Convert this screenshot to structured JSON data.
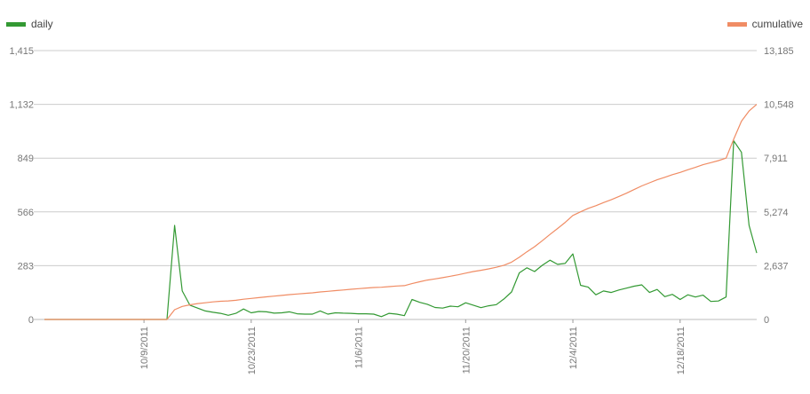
{
  "chart_data": {
    "type": "line",
    "legend": {
      "position": "top",
      "items": [
        {
          "label": "daily",
          "color": "#339933",
          "axis": "left"
        },
        {
          "label": "cumulative",
          "color": "#f08c64",
          "axis": "right"
        }
      ]
    },
    "y_left": {
      "ticks": [
        "0",
        "283",
        "566",
        "849",
        "1,132",
        "1,415"
      ],
      "range": [
        0,
        1415
      ]
    },
    "y_right": {
      "ticks": [
        "0",
        "2,637",
        "5,274",
        "7,911",
        "10,548",
        "13,185"
      ],
      "range": [
        0,
        13185
      ]
    },
    "x_axis": {
      "type": "date",
      "range": [
        "2011-09-26",
        "2011-12-28"
      ],
      "ticks": [
        {
          "date": "2011-10-09",
          "label": "10/9/2011"
        },
        {
          "date": "2011-10-23",
          "label": "10/23/2011"
        },
        {
          "date": "2011-11-06",
          "label": "11/6/2011"
        },
        {
          "date": "2011-11-20",
          "label": "11/20/2011"
        },
        {
          "date": "2011-12-04",
          "label": "12/4/2011"
        },
        {
          "date": "2011-12-18",
          "label": "12/18/2011"
        }
      ]
    },
    "grid": true,
    "series": [
      {
        "name": "daily",
        "color": "#339933",
        "axis": "left",
        "points": [
          [
            "2011-09-26",
            0
          ],
          [
            "2011-09-27",
            0
          ],
          [
            "2011-09-28",
            0
          ],
          [
            "2011-09-29",
            0
          ],
          [
            "2011-09-30",
            0
          ],
          [
            "2011-10-01",
            0
          ],
          [
            "2011-10-02",
            0
          ],
          [
            "2011-10-03",
            0
          ],
          [
            "2011-10-04",
            0
          ],
          [
            "2011-10-05",
            0
          ],
          [
            "2011-10-06",
            0
          ],
          [
            "2011-10-07",
            0
          ],
          [
            "2011-10-08",
            0
          ],
          [
            "2011-10-09",
            0
          ],
          [
            "2011-10-10",
            0
          ],
          [
            "2011-10-11",
            0
          ],
          [
            "2011-10-12",
            0
          ],
          [
            "2011-10-13",
            495
          ],
          [
            "2011-10-14",
            150
          ],
          [
            "2011-10-15",
            75
          ],
          [
            "2011-10-16",
            60
          ],
          [
            "2011-10-17",
            45
          ],
          [
            "2011-10-18",
            38
          ],
          [
            "2011-10-19",
            32
          ],
          [
            "2011-10-20",
            22
          ],
          [
            "2011-10-21",
            32
          ],
          [
            "2011-10-22",
            55
          ],
          [
            "2011-10-23",
            35
          ],
          [
            "2011-10-24",
            42
          ],
          [
            "2011-10-25",
            40
          ],
          [
            "2011-10-26",
            33
          ],
          [
            "2011-10-27",
            35
          ],
          [
            "2011-10-28",
            40
          ],
          [
            "2011-10-29",
            30
          ],
          [
            "2011-10-30",
            28
          ],
          [
            "2011-10-31",
            28
          ],
          [
            "2011-11-01",
            45
          ],
          [
            "2011-11-02",
            28
          ],
          [
            "2011-11-03",
            35
          ],
          [
            "2011-11-04",
            33
          ],
          [
            "2011-11-05",
            32
          ],
          [
            "2011-11-06",
            30
          ],
          [
            "2011-11-07",
            30
          ],
          [
            "2011-11-08",
            28
          ],
          [
            "2011-11-09",
            15
          ],
          [
            "2011-11-10",
            32
          ],
          [
            "2011-11-11",
            28
          ],
          [
            "2011-11-12",
            20
          ],
          [
            "2011-11-13",
            105
          ],
          [
            "2011-11-14",
            90
          ],
          [
            "2011-11-15",
            80
          ],
          [
            "2011-11-16",
            63
          ],
          [
            "2011-11-17",
            60
          ],
          [
            "2011-11-18",
            70
          ],
          [
            "2011-11-19",
            67
          ],
          [
            "2011-11-20",
            88
          ],
          [
            "2011-11-21",
            75
          ],
          [
            "2011-11-22",
            62
          ],
          [
            "2011-11-23",
            72
          ],
          [
            "2011-11-24",
            78
          ],
          [
            "2011-11-25",
            108
          ],
          [
            "2011-11-26",
            145
          ],
          [
            "2011-11-27",
            245
          ],
          [
            "2011-11-28",
            272
          ],
          [
            "2011-11-29",
            252
          ],
          [
            "2011-11-30",
            285
          ],
          [
            "2011-12-01",
            312
          ],
          [
            "2011-12-02",
            290
          ],
          [
            "2011-12-03",
            295
          ],
          [
            "2011-12-04",
            345
          ],
          [
            "2011-12-05",
            180
          ],
          [
            "2011-12-06",
            170
          ],
          [
            "2011-12-07",
            130
          ],
          [
            "2011-12-08",
            150
          ],
          [
            "2011-12-09",
            142
          ],
          [
            "2011-12-10",
            155
          ],
          [
            "2011-12-11",
            165
          ],
          [
            "2011-12-12",
            175
          ],
          [
            "2011-12-13",
            182
          ],
          [
            "2011-12-14",
            142
          ],
          [
            "2011-12-15",
            158
          ],
          [
            "2011-12-16",
            120
          ],
          [
            "2011-12-17",
            132
          ],
          [
            "2011-12-18",
            105
          ],
          [
            "2011-12-19",
            130
          ],
          [
            "2011-12-20",
            118
          ],
          [
            "2011-12-21",
            128
          ],
          [
            "2011-12-22",
            95
          ],
          [
            "2011-12-23",
            97
          ],
          [
            "2011-12-24",
            118
          ],
          [
            "2011-12-25",
            940
          ],
          [
            "2011-12-26",
            880
          ],
          [
            "2011-12-27",
            495
          ],
          [
            "2011-12-28",
            350
          ]
        ]
      },
      {
        "name": "cumulative",
        "color": "#f08c64",
        "axis": "right",
        "points": [
          [
            "2011-09-26",
            0
          ],
          [
            "2011-09-27",
            0
          ],
          [
            "2011-09-28",
            0
          ],
          [
            "2011-09-29",
            0
          ],
          [
            "2011-09-30",
            0
          ],
          [
            "2011-10-01",
            0
          ],
          [
            "2011-10-02",
            0
          ],
          [
            "2011-10-03",
            0
          ],
          [
            "2011-10-04",
            0
          ],
          [
            "2011-10-05",
            0
          ],
          [
            "2011-10-06",
            0
          ],
          [
            "2011-10-07",
            0
          ],
          [
            "2011-10-08",
            0
          ],
          [
            "2011-10-09",
            0
          ],
          [
            "2011-10-10",
            0
          ],
          [
            "2011-10-11",
            0
          ],
          [
            "2011-10-12",
            0
          ],
          [
            "2011-10-13",
            480
          ],
          [
            "2011-10-14",
            640
          ],
          [
            "2011-10-15",
            720
          ],
          [
            "2011-10-16",
            780
          ],
          [
            "2011-10-17",
            820
          ],
          [
            "2011-10-18",
            860
          ],
          [
            "2011-10-19",
            890
          ],
          [
            "2011-10-20",
            910
          ],
          [
            "2011-10-21",
            940
          ],
          [
            "2011-10-22",
            990
          ],
          [
            "2011-10-23",
            1030
          ],
          [
            "2011-10-24",
            1070
          ],
          [
            "2011-10-25",
            1110
          ],
          [
            "2011-10-26",
            1145
          ],
          [
            "2011-10-27",
            1180
          ],
          [
            "2011-10-28",
            1220
          ],
          [
            "2011-10-29",
            1250
          ],
          [
            "2011-10-30",
            1280
          ],
          [
            "2011-10-31",
            1305
          ],
          [
            "2011-11-01",
            1350
          ],
          [
            "2011-11-02",
            1380
          ],
          [
            "2011-11-03",
            1415
          ],
          [
            "2011-11-04",
            1445
          ],
          [
            "2011-11-05",
            1480
          ],
          [
            "2011-11-06",
            1510
          ],
          [
            "2011-11-07",
            1540
          ],
          [
            "2011-11-08",
            1565
          ],
          [
            "2011-11-09",
            1580
          ],
          [
            "2011-11-10",
            1610
          ],
          [
            "2011-11-11",
            1640
          ],
          [
            "2011-11-12",
            1660
          ],
          [
            "2011-11-13",
            1760
          ],
          [
            "2011-11-14",
            1850
          ],
          [
            "2011-11-15",
            1930
          ],
          [
            "2011-11-16",
            1990
          ],
          [
            "2011-11-17",
            2050
          ],
          [
            "2011-11-18",
            2120
          ],
          [
            "2011-11-19",
            2190
          ],
          [
            "2011-11-20",
            2270
          ],
          [
            "2011-11-21",
            2350
          ],
          [
            "2011-11-22",
            2410
          ],
          [
            "2011-11-23",
            2480
          ],
          [
            "2011-11-24",
            2560
          ],
          [
            "2011-11-25",
            2660
          ],
          [
            "2011-11-26",
            2810
          ],
          [
            "2011-11-27",
            3050
          ],
          [
            "2011-11-28",
            3320
          ],
          [
            "2011-11-29",
            3570
          ],
          [
            "2011-11-30",
            3860
          ],
          [
            "2011-12-01",
            4170
          ],
          [
            "2011-12-02",
            4460
          ],
          [
            "2011-12-03",
            4760
          ],
          [
            "2011-12-04",
            5100
          ],
          [
            "2011-12-05",
            5280
          ],
          [
            "2011-12-06",
            5450
          ],
          [
            "2011-12-07",
            5580
          ],
          [
            "2011-12-08",
            5730
          ],
          [
            "2011-12-09",
            5870
          ],
          [
            "2011-12-10",
            6030
          ],
          [
            "2011-12-11",
            6190
          ],
          [
            "2011-12-12",
            6370
          ],
          [
            "2011-12-13",
            6550
          ],
          [
            "2011-12-14",
            6700
          ],
          [
            "2011-12-15",
            6850
          ],
          [
            "2011-12-16",
            6970
          ],
          [
            "2011-12-17",
            7100
          ],
          [
            "2011-12-18",
            7210
          ],
          [
            "2011-12-19",
            7340
          ],
          [
            "2011-12-20",
            7460
          ],
          [
            "2011-12-21",
            7590
          ],
          [
            "2011-12-22",
            7690
          ],
          [
            "2011-12-23",
            7790
          ],
          [
            "2011-12-24",
            7910
          ],
          [
            "2011-12-25",
            8840
          ],
          [
            "2011-12-26",
            9720
          ],
          [
            "2011-12-27",
            10220
          ],
          [
            "2011-12-28",
            10548
          ]
        ]
      }
    ]
  }
}
